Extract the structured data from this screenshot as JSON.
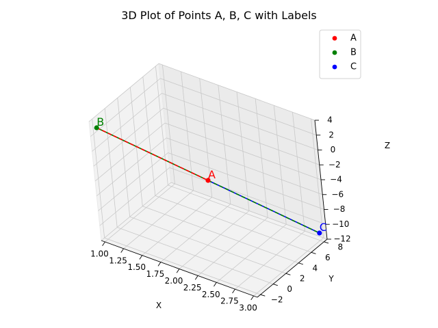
{
  "chart_data": {
    "type": "scatter",
    "projection": "3d",
    "title": "3D Plot of Points A, B, C with Labels",
    "xlabel": "X",
    "ylabel": "Y",
    "zlabel": "Z",
    "xlim": [
      0.95,
      3.05
    ],
    "ylim": [
      -2.5,
      8.5
    ],
    "zlim": [
      -12,
      4
    ],
    "xticks": [
      "1.00",
      "1.25",
      "1.50",
      "1.75",
      "2.00",
      "2.25",
      "2.50",
      "2.75",
      "3.00"
    ],
    "yticks": [
      "−2",
      "0",
      "2",
      "4",
      "6",
      "8"
    ],
    "zticks": [
      "4",
      "2",
      "0",
      "−2",
      "−4",
      "−6",
      "−8",
      "−10",
      "−12"
    ],
    "grid": true,
    "legend_position": "top-right",
    "series": [
      {
        "name": "A",
        "color": "#ff0000",
        "x": 2,
        "y": 3,
        "z": -4,
        "label": "A"
      },
      {
        "name": "B",
        "color": "#008000",
        "x": 1,
        "y": -2,
        "z": 3,
        "label": "B"
      },
      {
        "name": "C",
        "color": "#0000ff",
        "x": 3,
        "y": 8,
        "z": -11,
        "label": "C"
      }
    ],
    "lines": [
      {
        "from": "B",
        "to": "A",
        "style": "dashed",
        "color": "#ff0000",
        "under_color": "#008000"
      },
      {
        "from": "A",
        "to": "C",
        "style": "dashed",
        "color": "#008000",
        "under_color": "#0000ff"
      }
    ]
  }
}
